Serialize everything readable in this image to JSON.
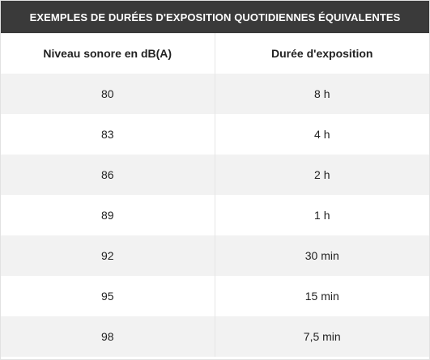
{
  "title": "EXEMPLES DE DURÉES D'EXPOSITION QUOTIDIENNES ÉQUIVALENTES",
  "headers": {
    "level": "Niveau sonore en dB(A)",
    "duration": "Durée d'exposition"
  },
  "rows": [
    {
      "level": "80",
      "duration": "8 h"
    },
    {
      "level": "83",
      "duration": "4 h"
    },
    {
      "level": "86",
      "duration": "2 h"
    },
    {
      "level": "89",
      "duration": "1 h"
    },
    {
      "level": "92",
      "duration": "30 min"
    },
    {
      "level": "95",
      "duration": "15 min"
    },
    {
      "level": "98",
      "duration": "7,5 min"
    }
  ],
  "colors": {
    "title_bg": "#3a3a3a",
    "title_text": "#ffffff",
    "stripe": "#f2f2f2"
  }
}
